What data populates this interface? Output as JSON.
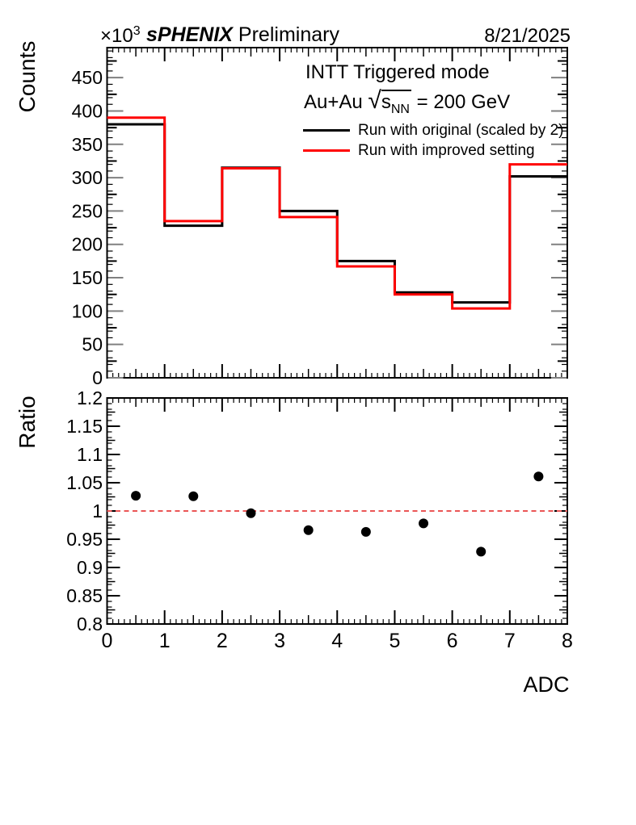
{
  "header": {
    "multiplier": "×10",
    "multiplier_exp": "3",
    "experiment": "sPHENIX",
    "status": " Preliminary",
    "date": "8/21/2025"
  },
  "annotations": {
    "line1": "INTT Triggered mode",
    "line2_prefix": "Au+Au ",
    "sqrt_symbol": "√",
    "sqrt_arg": "s",
    "sqrt_sub": "NN",
    "line2_suffix": " = 200 GeV"
  },
  "chart_data": [
    {
      "type": "step-histogram",
      "panel": "top",
      "title": "INTT Triggered mode, Au+Au sqrt(sNN) = 200 GeV",
      "bin_edges": [
        0,
        1,
        2,
        3,
        4,
        5,
        6,
        7,
        8
      ],
      "series": [
        {
          "name": "Run with original (scaled by 2)",
          "color": "#000000",
          "values": [
            380,
            228,
            315,
            250,
            175,
            128,
            113,
            302
          ]
        },
        {
          "name": "Run with improved setting",
          "color": "#ff0000",
          "values": [
            390,
            235,
            314,
            241,
            167,
            125,
            104,
            320
          ]
        }
      ],
      "ylabel": "Counts",
      "y_multiplier": "×10³",
      "xlim": [
        0,
        8
      ],
      "ylim": [
        0,
        495
      ],
      "ytick_values": [
        0,
        50,
        100,
        150,
        200,
        250,
        300,
        350,
        400,
        450
      ],
      "ytick_labels": [
        "0",
        "50",
        "100",
        "150",
        "200",
        "250",
        "300",
        "350",
        "400",
        "450"
      ],
      "legend_position": "top-right-inside",
      "grid": false
    },
    {
      "type": "scatter",
      "panel": "bottom",
      "x": [
        0.5,
        1.5,
        2.5,
        3.5,
        4.5,
        5.5,
        6.5,
        7.5
      ],
      "values": [
        1.027,
        1.026,
        0.996,
        0.966,
        0.963,
        0.978,
        0.928,
        1.061
      ],
      "marker": "filled-circle",
      "color": "#000000",
      "xlim": [
        0,
        8
      ],
      "ylim": [
        0.8,
        1.2
      ],
      "ytick_values": [
        0.8,
        0.85,
        0.9,
        0.95,
        1,
        1.05,
        1.1,
        1.15,
        1.2
      ],
      "ytick_labels": [
        "0.8",
        "0.85",
        "0.9",
        "0.95",
        "1",
        "1.05",
        "1.1",
        "1.15",
        "1.2"
      ],
      "xtick_values": [
        0,
        1,
        2,
        3,
        4,
        5,
        6,
        7,
        8
      ],
      "xtick_labels": [
        "0",
        "1",
        "2",
        "3",
        "4",
        "5",
        "6",
        "7",
        "8"
      ],
      "ylabel": "Ratio",
      "xlabel": "ADC",
      "reference_line": {
        "y": 1,
        "color": "#ea5555",
        "style": "dashed"
      },
      "grid": false
    }
  ]
}
